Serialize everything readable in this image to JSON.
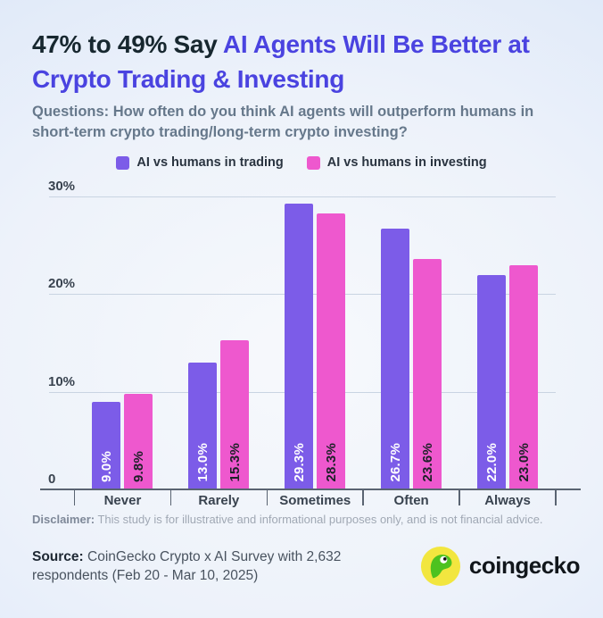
{
  "title": {
    "dark": "47% to 49% Say ",
    "accent": "AI Agents Will Be Better at Crypto Trading & Investing"
  },
  "subtitle": "Questions: How often do you think AI agents will outperform humans in short-term crypto trading/long-term crypto investing?",
  "legend": [
    {
      "label": "AI vs humans in trading",
      "color": "#7C5CE8"
    },
    {
      "label": "AI vs humans in investing",
      "color": "#EE58CE"
    }
  ],
  "chart_data": {
    "type": "bar",
    "categories": [
      "Never",
      "Rarely",
      "Sometimes",
      "Often",
      "Always"
    ],
    "series": [
      {
        "name": "AI vs humans in trading",
        "color": "#7C5CE8",
        "label_color": "#FFFFFF",
        "values": [
          9.0,
          13.0,
          29.3,
          26.7,
          22.0
        ]
      },
      {
        "name": "AI vs humans in investing",
        "color": "#EE58CE",
        "label_color": "#1C2127",
        "values": [
          9.8,
          15.3,
          28.3,
          23.6,
          23.0
        ]
      }
    ],
    "value_suffix": "%",
    "y_ticks": [
      {
        "label": "30%",
        "value": 30
      },
      {
        "label": "20%",
        "value": 20
      },
      {
        "label": "10%",
        "value": 10
      },
      {
        "label": "0",
        "value": 0
      }
    ],
    "ylim": [
      0,
      30
    ],
    "grid": true,
    "legend_position": "top",
    "title": "47% to 49% Say AI Agents Will Be Better at Crypto Trading & Investing"
  },
  "footer": {
    "disclaimer_label": "Disclaimer:",
    "disclaimer_text": " This study is for illustrative and informational purposes only, and is not financial advice.",
    "source_label": "Source:",
    "source_text": " CoinGecko Crypto x AI Survey with 2,632 respondents (Feb 20 - Mar 10, 2025)",
    "brand": "coingecko"
  },
  "colors": {
    "title_dark": "#17272F",
    "title_accent": "#4A43E0",
    "bar_trading": "#7C5CE8",
    "bar_investing": "#EE58CE",
    "background_edge": "#D6E3F8",
    "background_center": "#F7F9FC",
    "gridline": "#C9D4E2",
    "axis": "#5A6472"
  }
}
